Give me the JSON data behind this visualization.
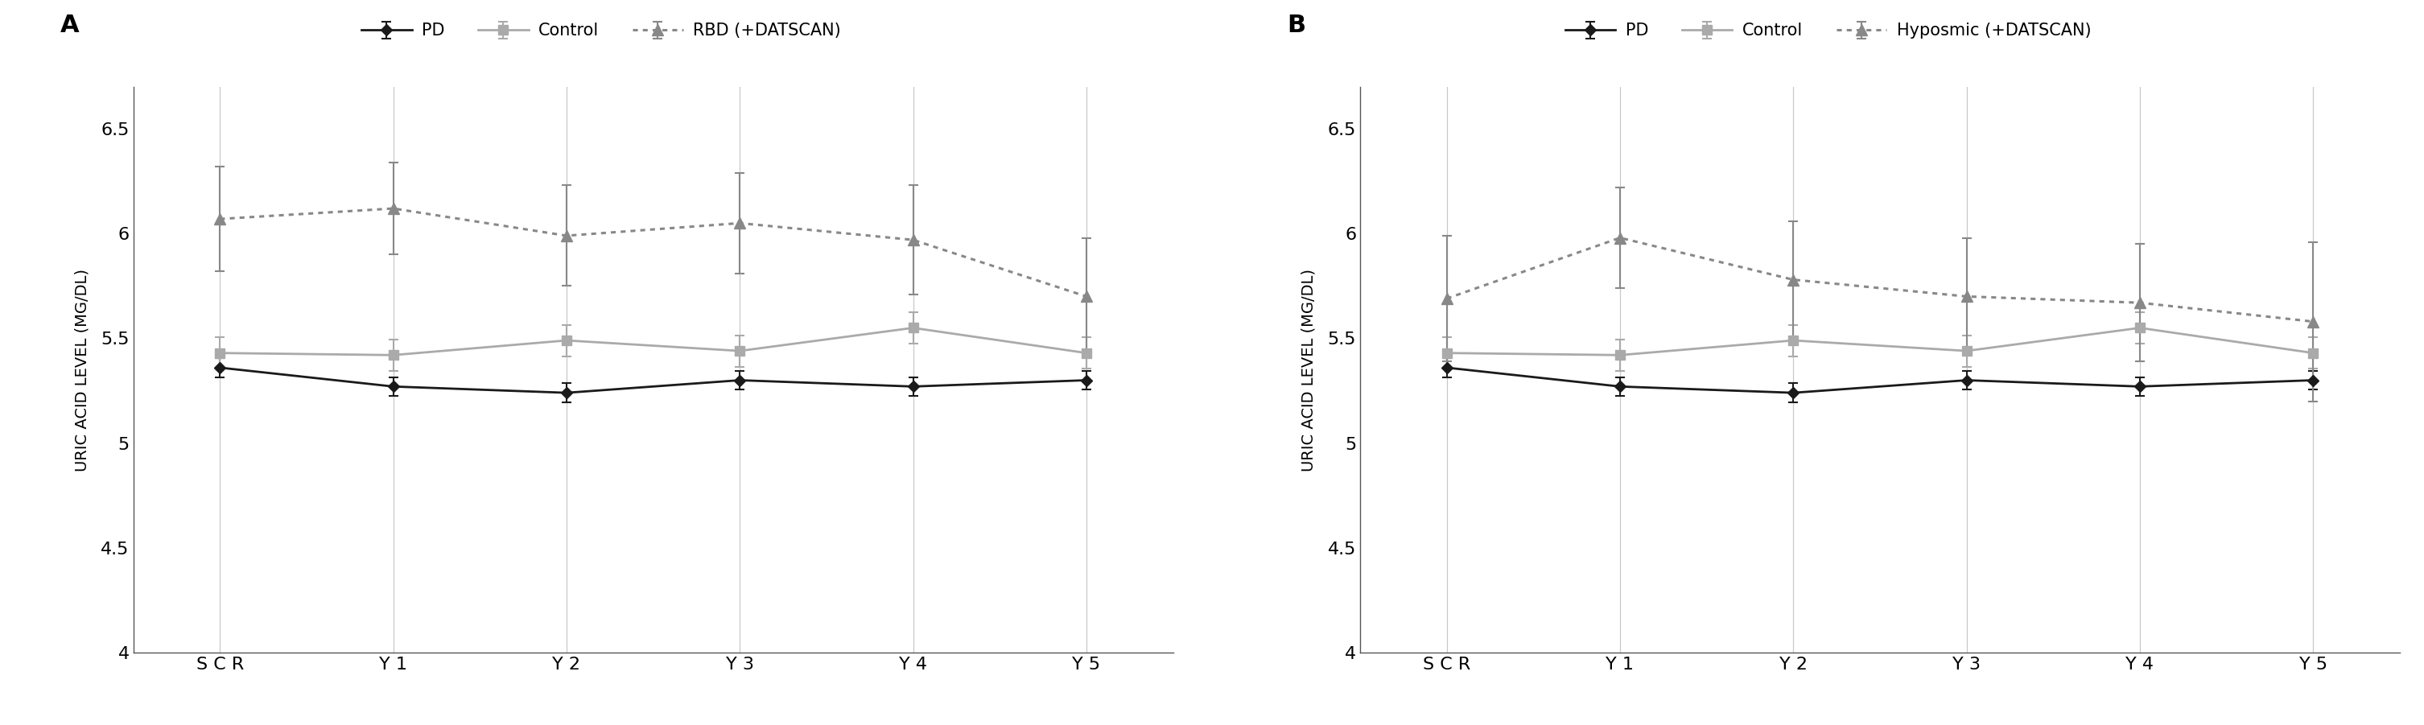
{
  "xticklabels": [
    "S C R",
    "Y 1",
    "Y 2",
    "Y 3",
    "Y 4",
    "Y 5"
  ],
  "x": [
    0,
    1,
    2,
    3,
    4,
    5
  ],
  "panel_A": {
    "label": "A",
    "pd_y": [
      5.36,
      5.27,
      5.24,
      5.3,
      5.27,
      5.3
    ],
    "pd_err": [
      0.045,
      0.045,
      0.045,
      0.045,
      0.045,
      0.045
    ],
    "ctrl_y": [
      5.43,
      5.42,
      5.49,
      5.44,
      5.55,
      5.43
    ],
    "ctrl_err": [
      0.075,
      0.075,
      0.075,
      0.075,
      0.075,
      0.075
    ],
    "rbd_y": [
      6.07,
      6.12,
      5.99,
      6.05,
      5.97,
      5.7
    ],
    "rbd_err": [
      0.25,
      0.22,
      0.24,
      0.24,
      0.26,
      0.28
    ],
    "legend3": "RBD (+DATSCAN)"
  },
  "panel_B": {
    "label": "B",
    "pd_y": [
      5.36,
      5.27,
      5.24,
      5.3,
      5.27,
      5.3
    ],
    "pd_err": [
      0.045,
      0.045,
      0.045,
      0.045,
      0.045,
      0.045
    ],
    "ctrl_y": [
      5.43,
      5.42,
      5.49,
      5.44,
      5.55,
      5.43
    ],
    "ctrl_err": [
      0.075,
      0.075,
      0.075,
      0.075,
      0.075,
      0.075
    ],
    "rbd_y": [
      5.69,
      5.98,
      5.78,
      5.7,
      5.67,
      5.58
    ],
    "rbd_err": [
      0.3,
      0.24,
      0.28,
      0.28,
      0.28,
      0.38
    ],
    "legend3": "Hyposmic (+DATSCAN)"
  },
  "ylabel": "URIC ACID LEVEL (MG/DL)",
  "ylim": [
    4.0,
    6.7
  ],
  "yticks": [
    4.0,
    4.5,
    5.0,
    5.5,
    6.0,
    6.5
  ],
  "pd_color": "#1a1a1a",
  "ctrl_color": "#aaaaaa",
  "rbd_color": "#888888",
  "bg_color": "#ffffff",
  "grid_color": "#c8c8c8"
}
